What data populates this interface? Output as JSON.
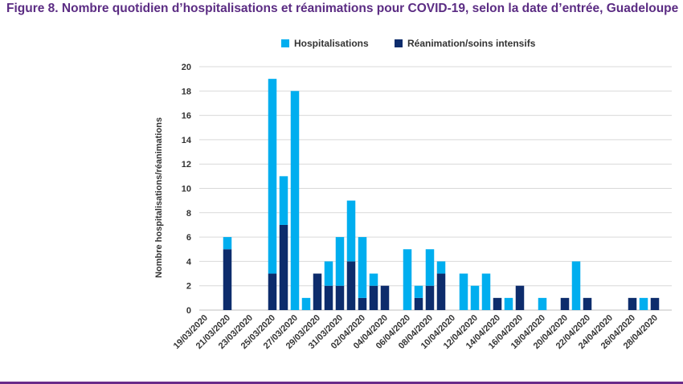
{
  "title": "Figure 8. Nombre quotidien d’hospitalisations et réanimations pour COVID-19, selon la date d’entrée, Guadeloupe",
  "colors": {
    "title": "#5b2c83",
    "hospitalisations": "#00aeef",
    "reanimation": "#0d2c6c",
    "grid": "#d9d9d9",
    "rule": "#6a2a8a"
  },
  "chart_data": {
    "type": "bar",
    "stacked": true,
    "title": "",
    "xlabel": "",
    "ylabel": "Nombre hospitalisations/réanimations",
    "ylim": [
      0,
      20
    ],
    "yticks": [
      0,
      2,
      4,
      6,
      8,
      10,
      12,
      14,
      16,
      18,
      20
    ],
    "grid": true,
    "legend_position": "top",
    "categories": [
      "19/03/2020",
      "20/03/2020",
      "21/03/2020",
      "22/03/2020",
      "23/03/2020",
      "24/03/2020",
      "25/03/2020",
      "26/03/2020",
      "27/03/2020",
      "28/03/2020",
      "29/03/2020",
      "30/03/2020",
      "31/03/2020",
      "01/04/2020",
      "02/04/2020",
      "03/04/2020",
      "04/04/2020",
      "05/04/2020",
      "06/04/2020",
      "07/04/2020",
      "08/04/2020",
      "09/04/2020",
      "10/04/2020",
      "11/04/2020",
      "12/04/2020",
      "13/04/2020",
      "14/04/2020",
      "15/04/2020",
      "16/04/2020",
      "17/04/2020",
      "18/04/2020",
      "19/04/2020",
      "20/04/2020",
      "21/04/2020",
      "22/04/2020",
      "23/04/2020",
      "24/04/2020",
      "25/04/2020",
      "26/04/2020",
      "27/04/2020",
      "28/04/2020",
      "29/04/2020"
    ],
    "xtick_labels": [
      "19/03/2020",
      "21/03/2020",
      "23/03/2020",
      "25/03/2020",
      "27/03/2020",
      "29/03/2020",
      "31/03/2020",
      "02/04/2020",
      "04/04/2020",
      "06/04/2020",
      "08/04/2020",
      "10/04/2020",
      "12/04/2020",
      "14/04/2020",
      "16/04/2020",
      "18/04/2020",
      "20/04/2020",
      "22/04/2020",
      "24/04/2020",
      "26/04/2020",
      "28/04/2020"
    ],
    "series": [
      {
        "name": "Réanimation/soins intensifs",
        "color": "#0d2c6c",
        "values": [
          0,
          0,
          5,
          0,
          0,
          0,
          3,
          7,
          0,
          0,
          3,
          2,
          2,
          4,
          1,
          2,
          2,
          0,
          0,
          1,
          2,
          3,
          0,
          0,
          0,
          0,
          1,
          0,
          2,
          0,
          0,
          0,
          1,
          0,
          1,
          0,
          0,
          0,
          1,
          0,
          1,
          0
        ]
      },
      {
        "name": "Hospitalisations",
        "color": "#00aeef",
        "values": [
          0,
          0,
          1,
          0,
          0,
          0,
          16,
          4,
          18,
          1,
          0,
          2,
          4,
          5,
          5,
          1,
          0,
          0,
          5,
          1,
          3,
          1,
          0,
          3,
          2,
          3,
          0,
          1,
          0,
          0,
          1,
          0,
          0,
          4,
          0,
          0,
          0,
          0,
          0,
          1,
          0,
          0
        ]
      }
    ]
  }
}
